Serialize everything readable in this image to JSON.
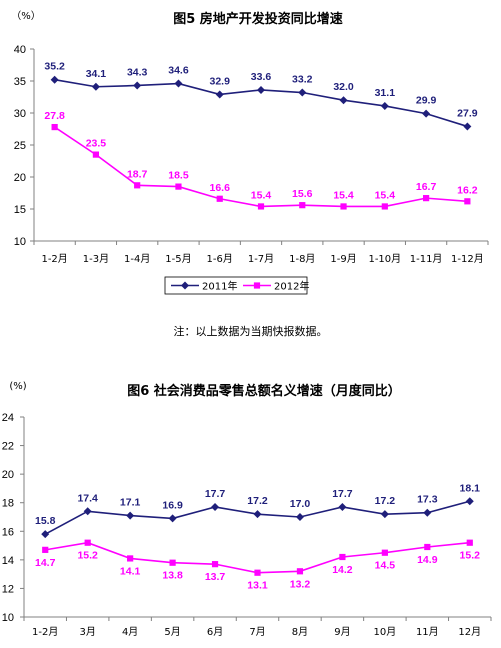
{
  "note": "注：以上数据为当期快报数据。",
  "colors": {
    "series_2011": "#1f1f7a",
    "series_2012": "#ff00ff",
    "series_monthly_a": "#1f1f7a",
    "series_monthly_b": "#ff00ff",
    "axis": "#808080"
  },
  "chart_data": [
    {
      "type": "line",
      "title": "图5 房地产开发投资同比增速",
      "ylabel": "（%）",
      "xlabel": "",
      "ylim": [
        10,
        40
      ],
      "yticks": [
        10,
        15,
        20,
        25,
        30,
        35,
        40
      ],
      "grid": false,
      "legend_placement": "bottom",
      "categories": [
        "1-2月",
        "1-3月",
        "1-4月",
        "1-5月",
        "1-6月",
        "1-7月",
        "1-8月",
        "1-9月",
        "1-10月",
        "1-11月",
        "1-12月"
      ],
      "series": [
        {
          "name": "2011年",
          "marker": "diamond",
          "values": [
            35.2,
            34.1,
            34.3,
            34.6,
            32.9,
            33.6,
            33.2,
            32.0,
            31.1,
            29.9,
            27.9
          ]
        },
        {
          "name": "2012年",
          "marker": "square",
          "values": [
            27.8,
            23.5,
            18.7,
            18.5,
            16.6,
            15.4,
            15.6,
            15.4,
            15.4,
            16.7,
            16.2
          ]
        }
      ]
    },
    {
      "type": "line",
      "title": "图6 社会消费品零售总额名义增速（月度同比）",
      "ylabel": "(%)",
      "xlabel": "",
      "ylim": [
        10,
        24
      ],
      "yticks": [
        10,
        12,
        14,
        16,
        18,
        20,
        22,
        24
      ],
      "grid": false,
      "legend_placement": "none",
      "categories": [
        "1-2月",
        "3月",
        "4月",
        "5月",
        "6月",
        "7月",
        "8月",
        "9月",
        "10月",
        "11月",
        "12月"
      ],
      "series": [
        {
          "marker": "diamond",
          "values": [
            15.8,
            17.4,
            17.1,
            16.9,
            17.7,
            17.2,
            17.0,
            17.7,
            17.2,
            17.3,
            18.1
          ]
        },
        {
          "marker": "square",
          "values": [
            14.7,
            15.2,
            14.1,
            13.8,
            13.7,
            13.1,
            13.2,
            14.2,
            14.5,
            14.9,
            15.2
          ]
        }
      ]
    }
  ]
}
